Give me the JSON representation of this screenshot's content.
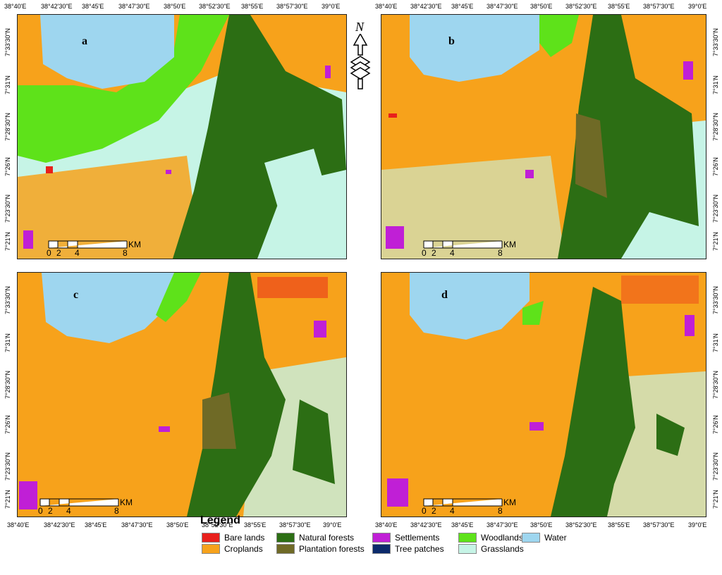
{
  "panels": [
    {
      "label": "a"
    },
    {
      "label": "b"
    },
    {
      "label": "c"
    },
    {
      "label": "d"
    }
  ],
  "lon_ticks": [
    "38°40'E",
    "38°42'30\"E",
    "38°45'E",
    "38°47'30\"E",
    "38°50'E",
    "38°52'30\"E",
    "38°55'E",
    "38°57'30\"E",
    "39°0'E"
  ],
  "lat_ticks": [
    "7°33'30\"N",
    "7°31'N",
    "7°28'30\"N",
    "7°26'N",
    "7°23'30\"N",
    "7°21'N"
  ],
  "scalebar": {
    "unit": "KM",
    "labels": [
      "0",
      "2",
      "4",
      "8"
    ]
  },
  "north_arrow": {
    "label": "N"
  },
  "legend": {
    "title": "Legend",
    "items": [
      {
        "label": "Bare lands",
        "color": "#e8201c"
      },
      {
        "label": "Croplands",
        "color": "#f7a21b"
      },
      {
        "label": "Natural forests",
        "color": "#2c6e14"
      },
      {
        "label": "Plantation forests",
        "color": "#6f6a26"
      },
      {
        "label": "Settlements",
        "color": "#c01fd6"
      },
      {
        "label": "Tree patches",
        "color": "#0b2a6b"
      },
      {
        "label": "Woodlands",
        "color": "#5ee21a"
      },
      {
        "label": "Grasslands",
        "color": "#c6f4e6"
      },
      {
        "label": "Water",
        "color": "#9ed6ef"
      }
    ]
  }
}
